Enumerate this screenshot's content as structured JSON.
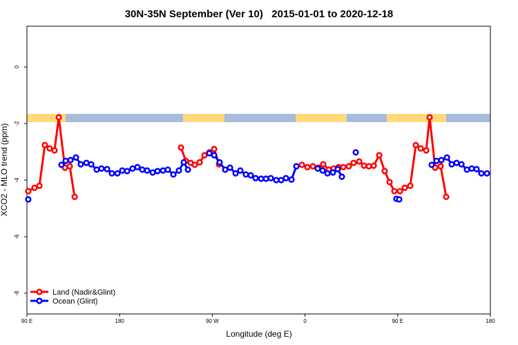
{
  "chart_data": {
    "type": "line",
    "title": "30N-35N September (Ver 10)   2015-01-01 to 2020-12-18",
    "x_label": "Longitude (deg E)",
    "y_label": "XCO2 - MLO trend (ppm)",
    "xlim": [
      90,
      540
    ],
    "xticks": [
      {
        "value": 90,
        "label": "90 E"
      },
      {
        "value": 180,
        "label": "180"
      },
      {
        "value": 270,
        "label": "90 W"
      },
      {
        "value": 360,
        "label": "0"
      },
      {
        "value": 450,
        "label": "90 E"
      },
      {
        "value": 540,
        "label": "180"
      }
    ],
    "ylim": [
      -8.73,
      1.44
    ],
    "yticks": [
      0,
      -2,
      -4,
      -6,
      -8
    ],
    "legend": "bottom-left",
    "series": [
      {
        "name": "Land (Nadir&Glint)",
        "color": "#ff0000",
        "x": [
          91.3,
          97.4,
          102.1,
          107.4,
          112.1,
          116.8,
          120.9,
          126.9,
          131.6,
          136.3,
          null,
          239.6,
          244.3,
          249.0,
          253.0,
          257.7,
          262.4,
          267.1,
          271.8,
          276.5,
          null,
          351.6,
          357.0,
          362.3,
          367.7,
          373.0,
          377.7,
          383.1,
          387.8,
          392.5,
          397.2,
          402.5,
          407.2,
          412.6,
          417.3,
          422.0,
          426.7,
          432.1,
          437.4,
          442.1,
          446.8,
          452.2,
          456.9,
          462.2,
          467.6,
          472.3,
          477.7,
          481.0,
          486.4,
          491.7,
          497.1
        ],
        "values": [
          -4.39,
          -4.27,
          -4.2,
          -2.76,
          -2.88,
          -2.95,
          -1.78,
          -3.56,
          -3.51,
          -4.59,
          null,
          -2.85,
          -3.32,
          -3.39,
          -3.46,
          -3.37,
          -3.12,
          -3.02,
          -2.9,
          -3.44,
          null,
          -3.51,
          -3.46,
          -3.54,
          -3.51,
          -3.56,
          -3.44,
          -3.63,
          -3.59,
          -3.54,
          -3.54,
          -3.51,
          -3.39,
          -3.34,
          -3.49,
          -3.51,
          -3.49,
          -3.12,
          -3.68,
          -4.07,
          -4.39,
          -4.39,
          -4.27,
          -4.2,
          -2.76,
          -2.88,
          -2.95,
          -1.78,
          -3.56,
          -3.51,
          -4.59
        ]
      },
      {
        "name": "Ocean (Glint)",
        "color": "#0000ff",
        "x": [
          91.3,
          null,
          123.5,
          127.6,
          132.3,
          137.6,
          142.3,
          147.7,
          152.4,
          157.7,
          162.4,
          167.8,
          172.5,
          177.9,
          182.6,
          187.3,
          192.6,
          197.3,
          202.0,
          206.7,
          212.1,
          216.8,
          222.1,
          226.8,
          232.2,
          237.6,
          242.3,
          246.3,
          null,
          267.1,
          271.8,
          277.1,
          282.5,
          287.2,
          292.6,
          297.2,
          302.6,
          307.3,
          312.0,
          317.4,
          322.1,
          326.8,
          332.1,
          336.8,
          341.5,
          346.9,
          351.6,
          null,
          372.4,
          377.1,
          381.8,
          387.1,
          391.8,
          395.8,
          null,
          409.3,
          null,
          448.8,
          451.5,
          null,
          483.0,
          487.7,
          492.4,
          497.8,
          502.5,
          507.2,
          511.9,
          517.2,
          521.9,
          526.6,
          531.3,
          536.7
        ],
        "values": [
          -4.68,
          null,
          -3.46,
          -3.32,
          -3.29,
          -3.2,
          -3.44,
          -3.39,
          -3.44,
          -3.63,
          -3.59,
          -3.61,
          -3.76,
          -3.76,
          -3.66,
          -3.68,
          -3.59,
          -3.54,
          -3.63,
          -3.66,
          -3.73,
          -3.68,
          -3.66,
          -3.63,
          -3.8,
          -3.66,
          -3.37,
          -3.63,
          null,
          -3.05,
          -3.12,
          -3.37,
          -3.63,
          -3.56,
          -3.76,
          -3.66,
          -3.8,
          -3.83,
          -3.93,
          -3.95,
          -3.95,
          -3.93,
          -4.0,
          -4.0,
          -3.93,
          -3.98,
          -3.51,
          null,
          -3.59,
          -3.66,
          -3.76,
          -3.73,
          -3.61,
          -3.88,
          null,
          -3.02,
          null,
          -4.66,
          -4.68,
          null,
          -3.46,
          -3.32,
          -3.29,
          -3.2,
          -3.44,
          -3.39,
          -3.44,
          -3.63,
          -3.59,
          -3.61,
          -3.76,
          -3.76
        ]
      }
    ]
  }
}
